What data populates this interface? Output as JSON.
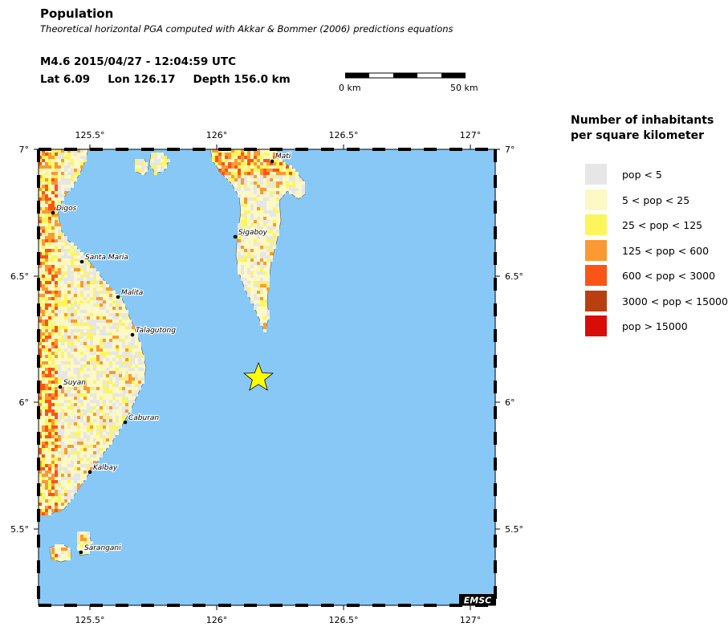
{
  "header": {
    "title": "Population",
    "subtitle": "Theoretical horizontal PGA computed with Akkar & Bommer (2006) predictions equations",
    "event": "M4.6  2015/04/27 - 12:04:59 UTC",
    "lat": "Lat  6.09",
    "lon": "Lon 126.17",
    "depth": "Depth 156.0 km"
  },
  "scalebar": {
    "left_label": "0 km",
    "right_label": "50 km"
  },
  "legend": {
    "title": "Number of inhabitants per square kilometer",
    "items": [
      {
        "label": "pop < 5",
        "color": "#e6e6e6"
      },
      {
        "label": "5 < pop < 25",
        "color": "#fdf8c4"
      },
      {
        "label": "25 < pop < 125",
        "color": "#fcf65c"
      },
      {
        "label": "125 < pop < 600",
        "color": "#fb9a32"
      },
      {
        "label": "600 < pop < 3000",
        "color": "#fa5516"
      },
      {
        "label": "3000 < pop < 15000",
        "color": "#b84010"
      },
      {
        "label": "pop > 15000",
        "color": "#d90d07"
      }
    ]
  },
  "map": {
    "sea_color": "#87c8f7",
    "lon_ticks": [
      "125.5°",
      "126°",
      "126.5°",
      "127°"
    ],
    "lat_ticks": [
      "7°",
      "6.5°",
      "6°",
      "5.5°"
    ],
    "cities": [
      "Mati",
      "Digos",
      "Sigaboy",
      "Santa Maria",
      "Malita",
      "Talagutong",
      "Suyan",
      "Caburan",
      "Kalbay",
      "Sarangani"
    ],
    "epicenter_marker": "star",
    "epicenter_color": "#ffff00",
    "logo": "EMSC"
  }
}
